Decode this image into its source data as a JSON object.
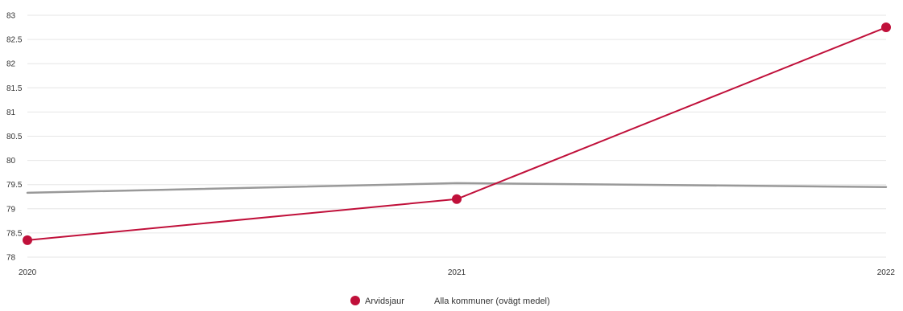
{
  "chart_data": {
    "type": "line",
    "title": "",
    "xlabel": "",
    "ylabel": "",
    "x": [
      "2020",
      "2021",
      "2022"
    ],
    "ylim": [
      78,
      83
    ],
    "y_ticks": [
      "83",
      "82.5",
      "82",
      "81.5",
      "81",
      "80.5",
      "80",
      "79.5",
      "79",
      "78.5",
      "78"
    ],
    "grid": true,
    "legend_position": "bottom-center",
    "series": [
      {
        "name": "Arvidsjaur",
        "values": [
          78.35,
          79.2,
          82.75
        ],
        "color": "#c0103a",
        "markers": true
      },
      {
        "name": "Alla kommuner (ovägt medel)",
        "values": [
          79.33,
          79.53,
          79.45
        ],
        "color": "#999999",
        "markers": false
      }
    ]
  }
}
